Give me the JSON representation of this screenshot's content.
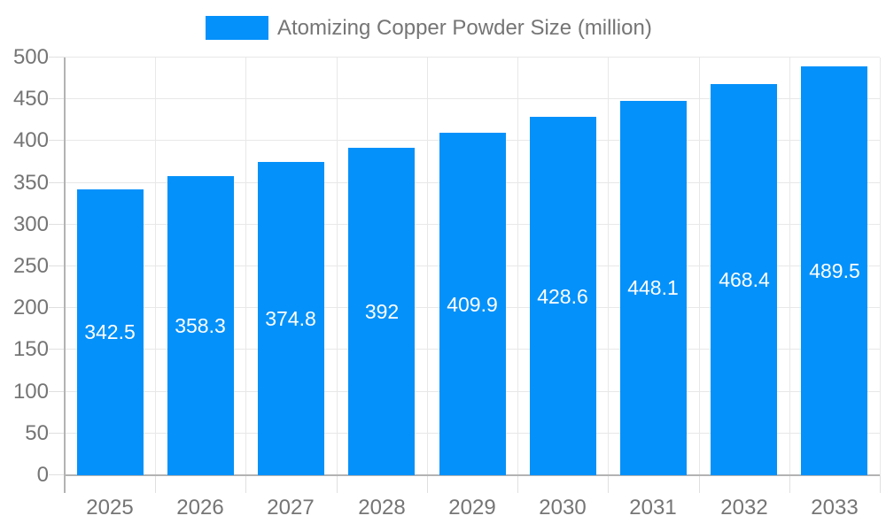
{
  "legend": {
    "label": "Atomizing Copper Powder Size (million)"
  },
  "chart_data": {
    "type": "bar",
    "title": "Atomizing Copper Powder Size (million)",
    "categories": [
      "2025",
      "2026",
      "2027",
      "2028",
      "2029",
      "2030",
      "2031",
      "2032",
      "2033"
    ],
    "values": [
      342.5,
      358.3,
      374.8,
      392,
      409.9,
      428.6,
      448.1,
      468.4,
      489.5
    ],
    "value_labels": [
      "342.5",
      "358.3",
      "374.8",
      "392",
      "409.9",
      "428.6",
      "448.1",
      "468.4",
      "489.5"
    ],
    "xlabel": "",
    "ylabel": "",
    "ylim": [
      0,
      500
    ],
    "yticks": [
      0,
      50,
      100,
      150,
      200,
      250,
      300,
      350,
      400,
      450,
      500
    ],
    "grid": true,
    "legend_position": "top"
  },
  "colors": {
    "bar": "#0591fa",
    "bar_label_text": "#ffffff",
    "grid_line": "#e8e8e8",
    "tick_line": "#e0e0e0",
    "axis_line": "#b3b3b3",
    "axis_text": "#757575",
    "background": "#ffffff"
  }
}
